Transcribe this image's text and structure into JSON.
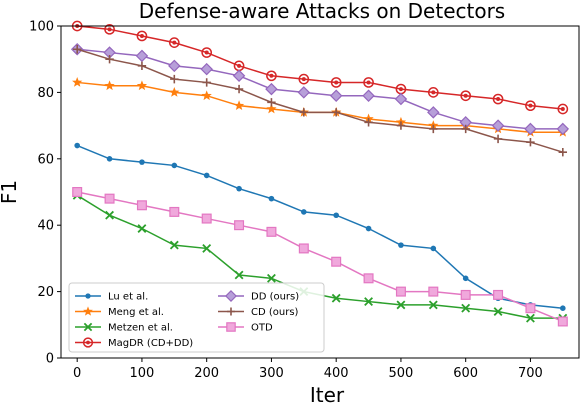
{
  "chart_data": {
    "type": "line",
    "title": "Defense-aware Attacks on Detectors",
    "xlabel": "Iter",
    "ylabel": "F1",
    "xlim": [
      -25,
      775
    ],
    "ylim": [
      0,
      100
    ],
    "xticks": [
      "0",
      "100",
      "200",
      "300",
      "400",
      "500",
      "600",
      "700"
    ],
    "yticks": [
      "0",
      "20",
      "40",
      "60",
      "80",
      "100"
    ],
    "grid": false,
    "legend_position": "lower-left",
    "x": [
      0,
      50,
      100,
      150,
      200,
      250,
      300,
      350,
      400,
      450,
      500,
      550,
      600,
      650,
      700,
      750
    ],
    "series": [
      {
        "name": "Lu  et al.",
        "color": "#1f77b4",
        "marker": "circle",
        "values": [
          64,
          60,
          59,
          58,
          55,
          51,
          48,
          44,
          43,
          39,
          34,
          33,
          24,
          18,
          16,
          15
        ]
      },
      {
        "name": "Meng et al.",
        "color": "#ff7f0e",
        "marker": "star",
        "values": [
          83,
          82,
          82,
          80,
          79,
          76,
          75,
          74,
          74,
          72,
          71,
          70,
          70,
          69,
          68,
          68
        ]
      },
      {
        "name": "Metzen et al.",
        "color": "#2ca02c",
        "marker": "x",
        "values": [
          49,
          43,
          39,
          34,
          33,
          25,
          24,
          20,
          18,
          17,
          16,
          16,
          15,
          14,
          12,
          12
        ]
      },
      {
        "name": "MagDR (CD+DD)",
        "color": "#d62728",
        "marker": "circle-dot",
        "values": [
          100,
          99,
          97,
          95,
          92,
          88,
          85,
          84,
          83,
          83,
          81,
          80,
          79,
          78,
          76,
          75
        ]
      },
      {
        "name": "DD (ours)",
        "color": "#9467bd",
        "marker": "diamond",
        "values": [
          93,
          92,
          91,
          88,
          87,
          85,
          81,
          80,
          79,
          79,
          78,
          74,
          71,
          70,
          69,
          69
        ]
      },
      {
        "name": "CD (ours)",
        "color": "#8c564b",
        "marker": "plus",
        "values": [
          93,
          90,
          88,
          84,
          83,
          81,
          77,
          74,
          74,
          71,
          70,
          69,
          69,
          66,
          65,
          62
        ]
      },
      {
        "name": "OTD",
        "color": "#e377c2",
        "marker": "square",
        "values": [
          50,
          48,
          46,
          44,
          42,
          40,
          38,
          33,
          29,
          24,
          20,
          20,
          19,
          19,
          15,
          11
        ]
      }
    ]
  }
}
